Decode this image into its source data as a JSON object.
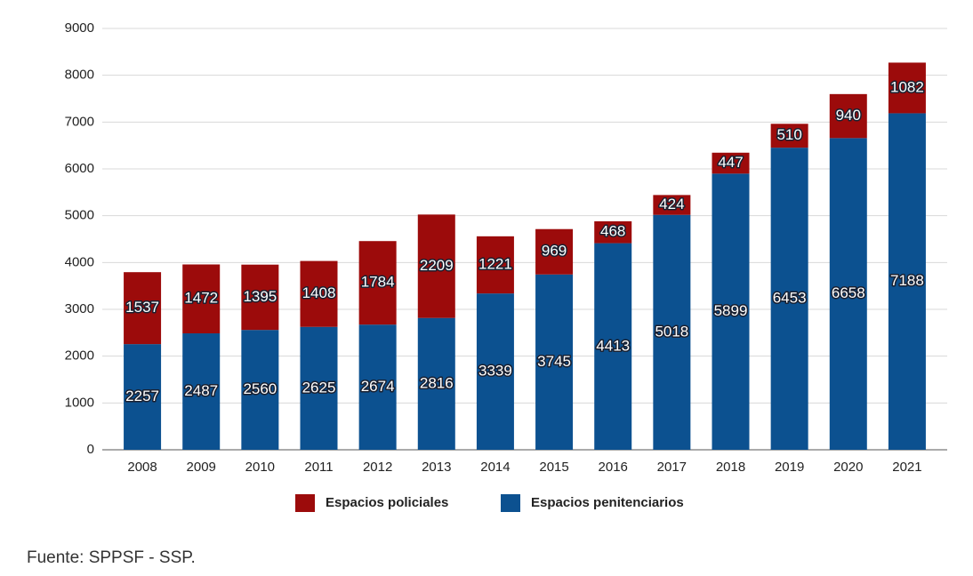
{
  "chart_data": {
    "type": "stacked_bar",
    "categories": [
      "2008",
      "2009",
      "2010",
      "2011",
      "2012",
      "2013",
      "2014",
      "2015",
      "2016",
      "2017",
      "2018",
      "2019",
      "2020",
      "2021"
    ],
    "series": [
      {
        "name": "Espacios policiales",
        "color": "#9c0b0b",
        "values": [
          1537,
          1472,
          1395,
          1408,
          1784,
          2209,
          1221,
          969,
          468,
          424,
          447,
          510,
          940,
          1082
        ]
      },
      {
        "name": "Espacios penitenciarios",
        "color": "#0c5190",
        "values": [
          2257,
          2487,
          2560,
          2625,
          2674,
          2816,
          3339,
          3745,
          4413,
          5018,
          5899,
          6453,
          6658,
          7188
        ]
      }
    ],
    "ylim": [
      0,
      9000
    ],
    "yticks": [
      0,
      1000,
      2000,
      3000,
      4000,
      5000,
      6000,
      7000,
      8000,
      9000
    ],
    "grid": true,
    "source": "Fuente: SPPSF - SSP."
  }
}
